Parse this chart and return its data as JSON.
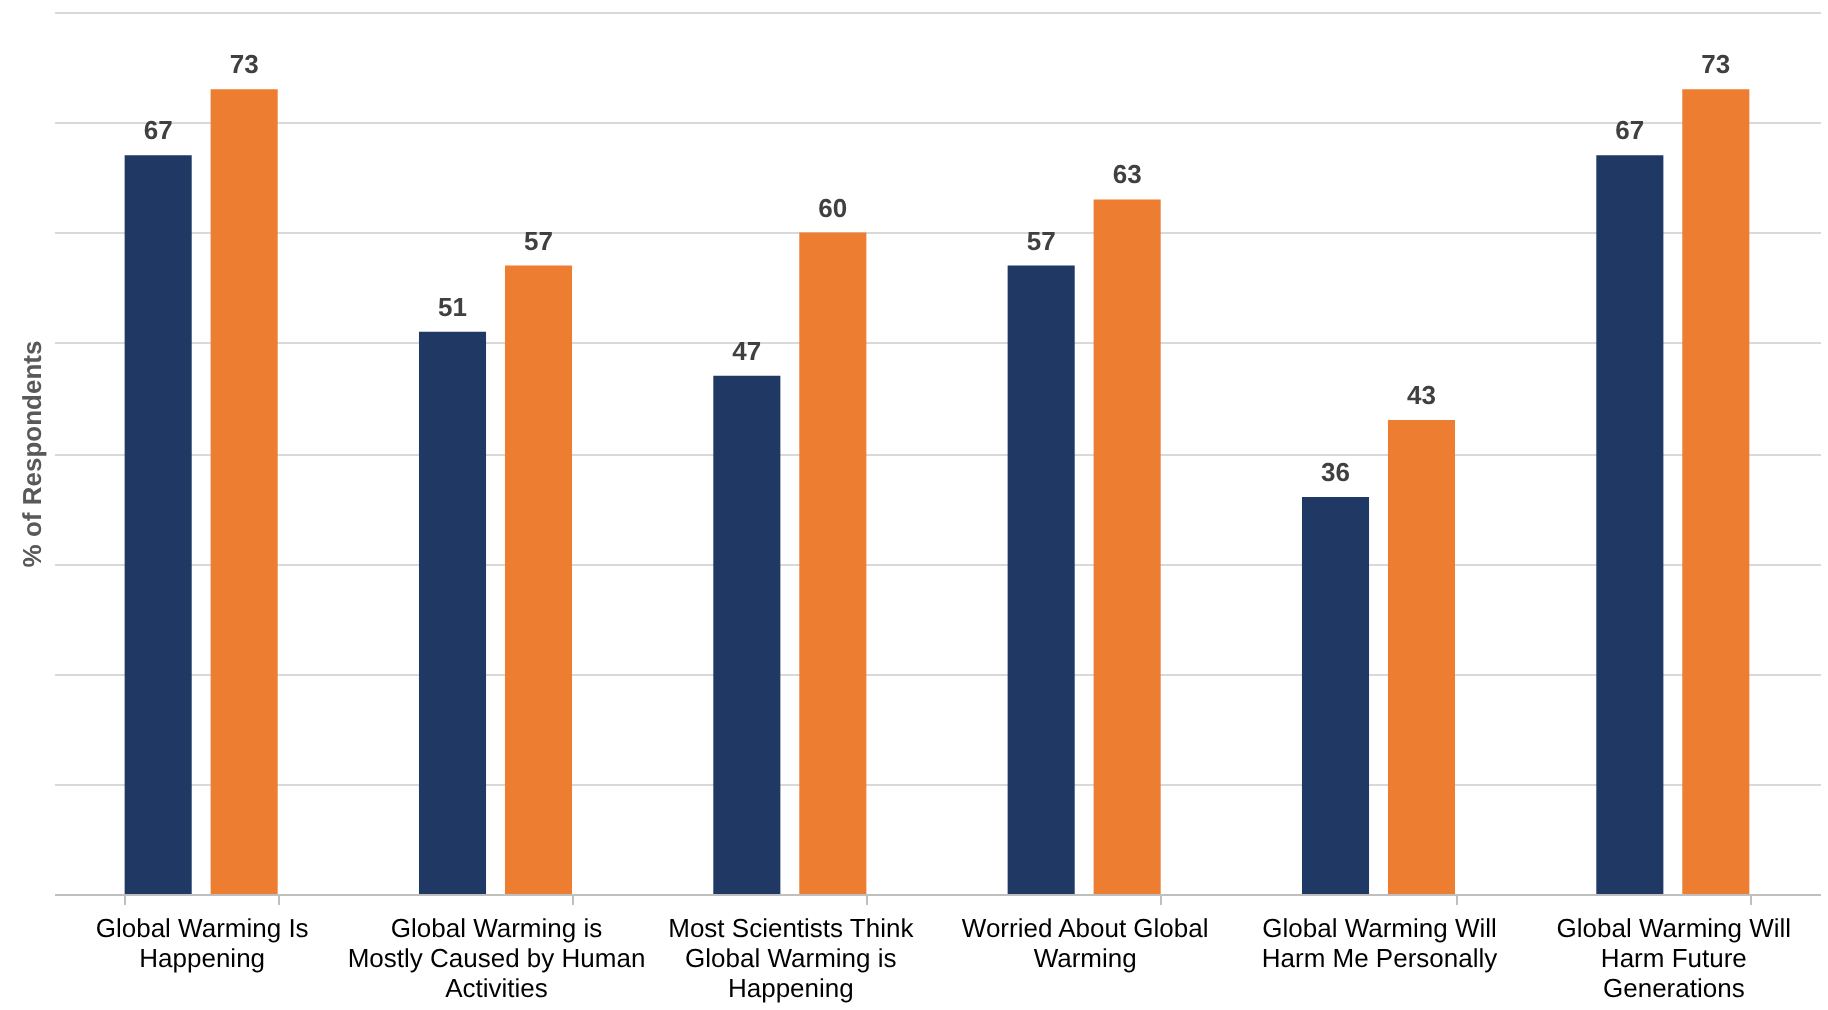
{
  "chart_data": {
    "type": "bar",
    "ylabel": "% of Respondents",
    "categories": [
      "Global Warming Is Happening",
      "Global Warming is Mostly Caused by Human Activities",
      "Most Scientists Think Global Warming is Happening",
      "Worried About Global Warming",
      "Global Warming Will Harm Me Personally",
      "Global Warming Will Harm Future Generations"
    ],
    "series": [
      {
        "color": "#1f3864",
        "values": [
          67,
          51,
          47,
          57,
          36,
          67
        ]
      },
      {
        "color": "#ed7d31",
        "values": [
          73,
          57,
          60,
          63,
          43,
          73
        ]
      }
    ],
    "ylim": [
      0,
      80
    ],
    "yticks": [
      {
        "value": 0,
        "label": null
      },
      {
        "value": 10,
        "label": null
      },
      {
        "value": 20,
        "label": null
      },
      {
        "value": 30,
        "label": null
      },
      {
        "value": 40,
        "label": null
      },
      {
        "value": 50,
        "label": null
      },
      {
        "value": 60,
        "label": null
      },
      {
        "value": 70,
        "label": null
      },
      {
        "value": 80,
        "label": null
      }
    ],
    "grid": true,
    "tick_labels": "x",
    "data_labels": true,
    "legend": false
  }
}
